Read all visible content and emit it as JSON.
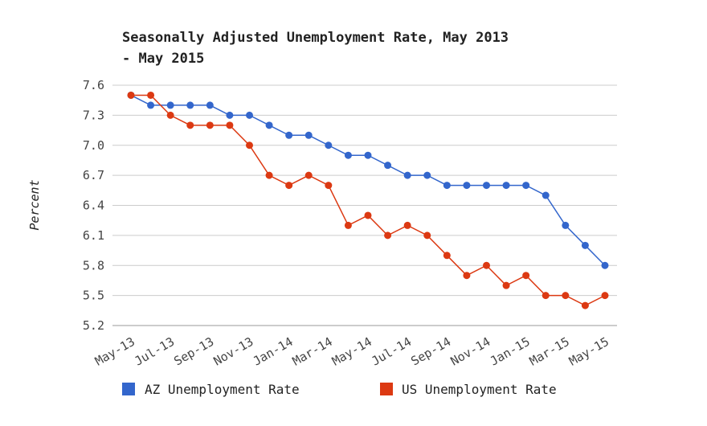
{
  "chart_data": {
    "type": "line",
    "title_line1": "Seasonally Adjusted Unemployment Rate, May 2013",
    "title_line2": "- May 2015",
    "xlabel": "",
    "ylabel": "Percent",
    "ylim": [
      5.2,
      7.6
    ],
    "yticks": [
      "7.6",
      "7.3",
      "7.0",
      "6.7",
      "6.4",
      "6.1",
      "5.8",
      "5.5",
      "5.2"
    ],
    "ytick_values": [
      7.6,
      7.3,
      7.0,
      6.7,
      6.4,
      6.1,
      5.8,
      5.5,
      5.2
    ],
    "x": [
      "May-13",
      "Jun-13",
      "Jul-13",
      "Aug-13",
      "Sep-13",
      "Oct-13",
      "Nov-13",
      "Dec-13",
      "Jan-14",
      "Feb-14",
      "Mar-14",
      "Apr-14",
      "May-14",
      "Jun-14",
      "Jul-14",
      "Aug-14",
      "Sep-14",
      "Oct-14",
      "Nov-14",
      "Dec-14",
      "Jan-15",
      "Feb-15",
      "Mar-15",
      "Apr-15",
      "May-15"
    ],
    "xtick_labels": [
      "May-13",
      "Jul-13",
      "Sep-13",
      "Nov-13",
      "Jan-14",
      "Mar-14",
      "May-14",
      "Jul-14",
      "Sep-14",
      "Nov-14",
      "Jan-15",
      "Mar-15",
      "May-15"
    ],
    "grid": true,
    "legend_position": "bottom",
    "series": [
      {
        "name": "AZ Unemployment Rate",
        "color": "#3366cc",
        "values": [
          7.5,
          7.4,
          7.4,
          7.4,
          7.4,
          7.3,
          7.3,
          7.2,
          7.1,
          7.1,
          7.0,
          6.9,
          6.9,
          6.8,
          6.7,
          6.7,
          6.6,
          6.6,
          6.6,
          6.6,
          6.6,
          6.5,
          6.2,
          6.0,
          5.8
        ]
      },
      {
        "name": "US Unemployment Rate",
        "color": "#dc3912",
        "values": [
          7.5,
          7.5,
          7.3,
          7.2,
          7.2,
          7.2,
          7.0,
          6.7,
          6.6,
          6.7,
          6.6,
          6.2,
          6.3,
          6.1,
          6.2,
          6.1,
          5.9,
          5.7,
          5.8,
          5.6,
          5.7,
          5.5,
          5.5,
          5.4,
          5.5
        ]
      }
    ]
  }
}
